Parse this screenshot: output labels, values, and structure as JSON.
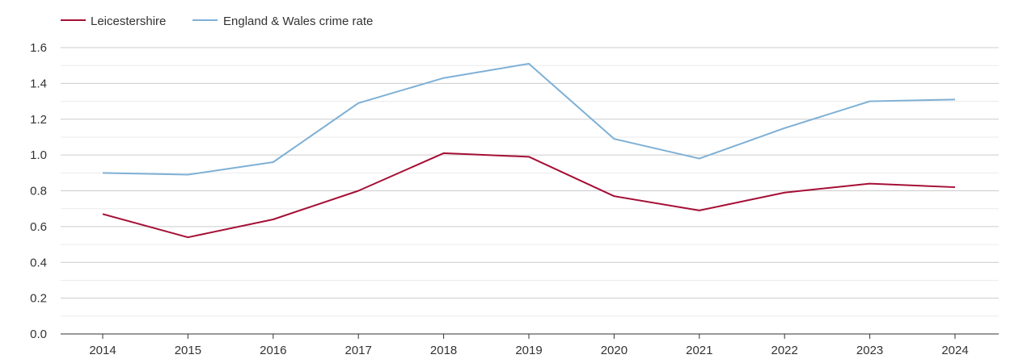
{
  "chart_data": {
    "type": "line",
    "title": "",
    "xlabel": "",
    "ylabel": "",
    "x": [
      "2014",
      "2015",
      "2016",
      "2017",
      "2018",
      "2019",
      "2020",
      "2021",
      "2022",
      "2023",
      "2024"
    ],
    "ylim": [
      0,
      1.6
    ],
    "yticks": [
      "0.0",
      "0.2",
      "0.4",
      "0.6",
      "0.8",
      "1.0",
      "1.2",
      "1.4",
      "1.6"
    ],
    "grid": true,
    "legend_position": "top-left",
    "series": [
      {
        "name": "Leicestershire",
        "color": "#a50f36",
        "values": [
          0.67,
          0.54,
          0.64,
          0.8,
          1.01,
          0.99,
          0.77,
          0.69,
          0.79,
          0.84,
          0.82
        ]
      },
      {
        "name": "England & Wales crime rate",
        "color": "#7eb0d5",
        "values": [
          0.9,
          0.89,
          0.96,
          1.29,
          1.43,
          1.51,
          1.09,
          0.98,
          1.15,
          1.3,
          1.31
        ]
      }
    ]
  }
}
